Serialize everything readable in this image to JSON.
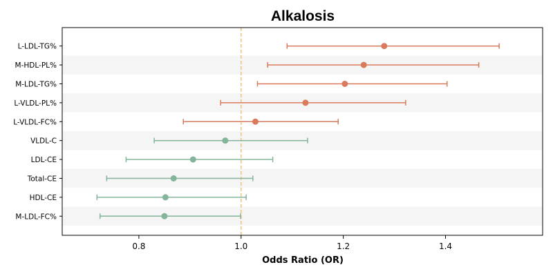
{
  "chart_data": {
    "type": "forest",
    "title": "Alkalosis",
    "xlabel": "Odds Ratio (OR)",
    "ylabel": "",
    "xlim": [
      0.65,
      1.59
    ],
    "xticks": [
      0.8,
      1.0,
      1.2,
      1.4
    ],
    "xtick_labels": [
      "0.8",
      "1.0",
      "1.2",
      "1.4"
    ],
    "reference_line": 1.0,
    "reference_color": "#f5c27a",
    "stripe_color": "#f5f5f5",
    "increase_color": "#d97a5c",
    "decrease_color": "#84b59a",
    "rows": [
      {
        "label": "L-LDL-TG%",
        "or": 1.28,
        "lo": 1.09,
        "hi": 1.505
      },
      {
        "label": "M-HDL-PL%",
        "or": 1.24,
        "lo": 1.052,
        "hi": 1.465
      },
      {
        "label": "M-LDL-TG%",
        "or": 1.203,
        "lo": 1.032,
        "hi": 1.403
      },
      {
        "label": "L-VLDL-PL%",
        "or": 1.126,
        "lo": 0.96,
        "hi": 1.322
      },
      {
        "label": "L-VLDL-FC%",
        "or": 1.028,
        "lo": 0.887,
        "hi": 1.19
      },
      {
        "label": "VLDL-C",
        "or": 0.969,
        "lo": 0.83,
        "hi": 1.13
      },
      {
        "label": "LDL-CE",
        "or": 0.906,
        "lo": 0.775,
        "hi": 1.062
      },
      {
        "label": "Total-CE",
        "or": 0.868,
        "lo": 0.737,
        "hi": 1.023
      },
      {
        "label": "HDL-CE",
        "or": 0.852,
        "lo": 0.718,
        "hi": 1.01
      },
      {
        "label": "M-LDL-FC%",
        "or": 0.85,
        "lo": 0.724,
        "hi": 0.999
      }
    ]
  }
}
